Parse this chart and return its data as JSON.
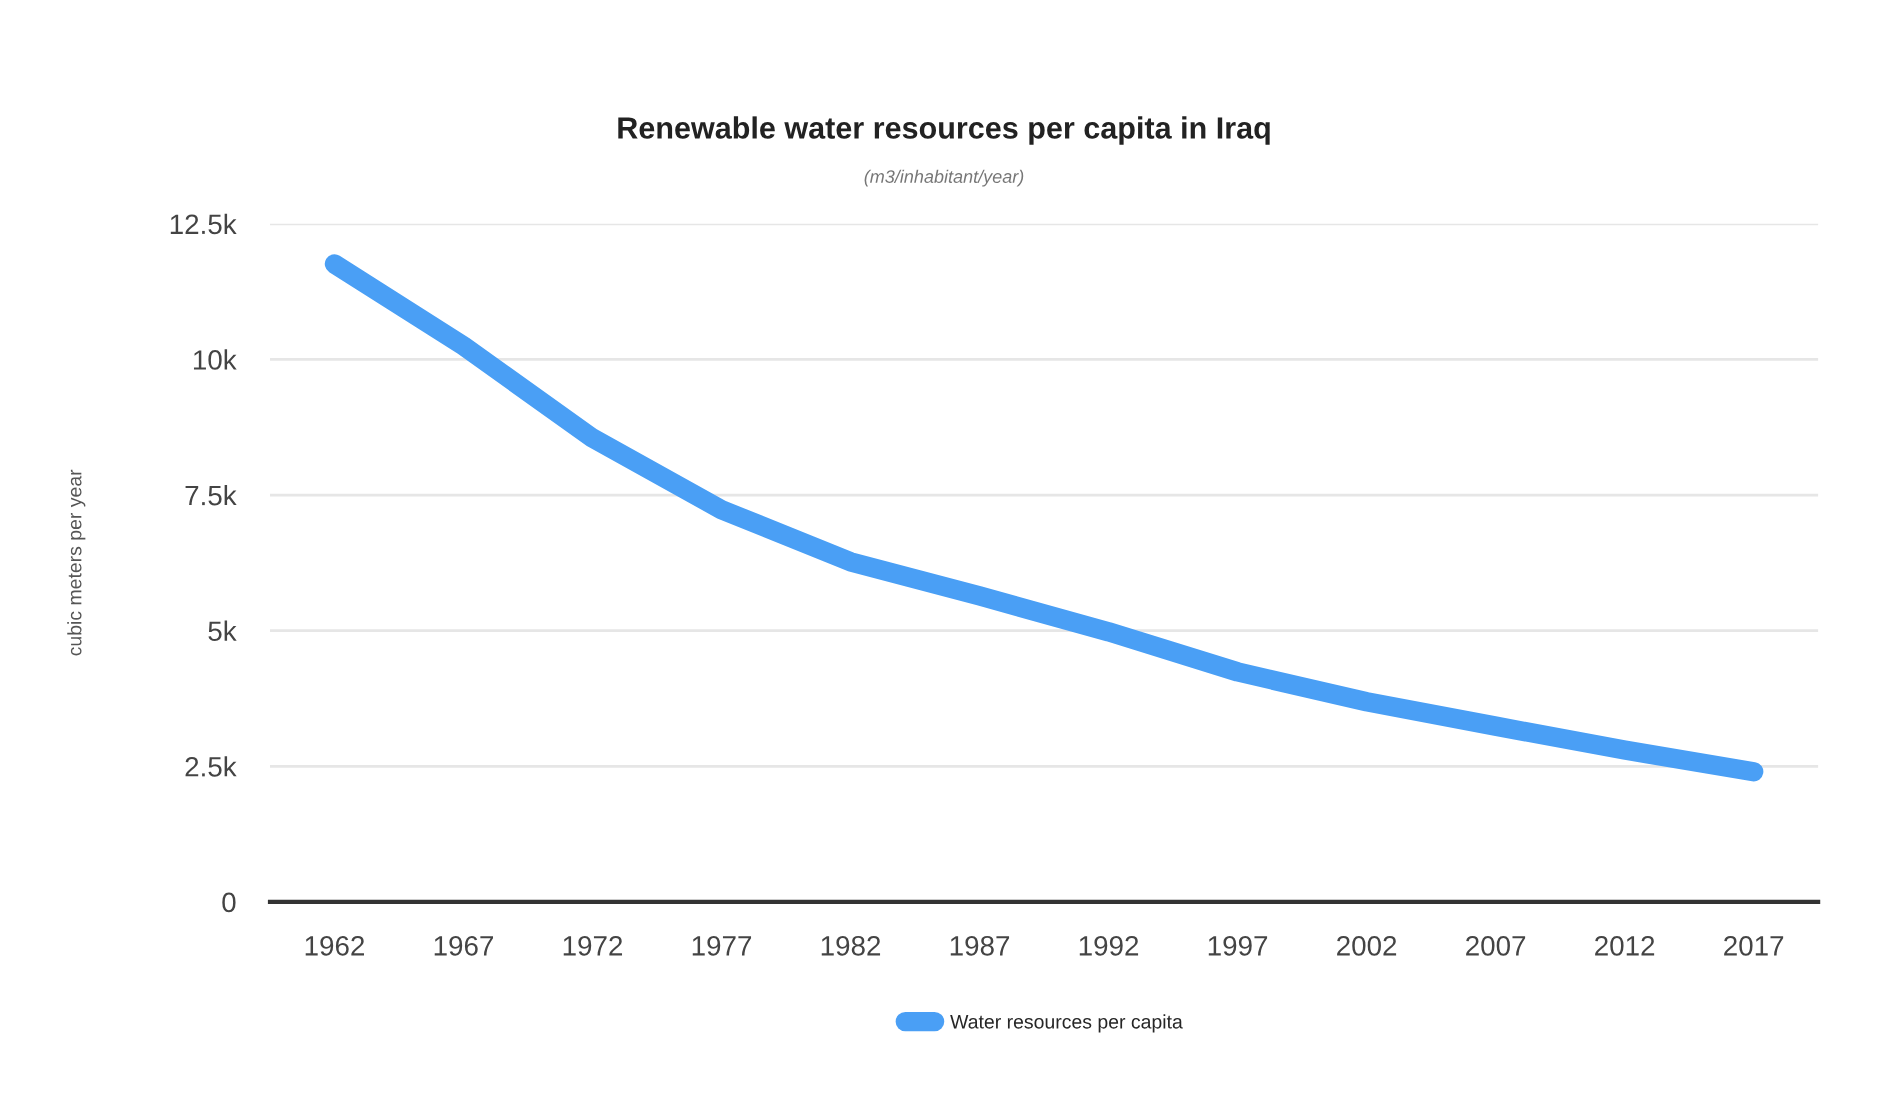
{
  "chart_data": {
    "type": "line",
    "title": "Renewable water resources per capita in Iraq",
    "subtitle": "(m3/inhabitant/year)",
    "ylabel": "cubic meters per year",
    "x": [
      1962,
      1967,
      1972,
      1977,
      1982,
      1987,
      1992,
      1997,
      2002,
      2007,
      2012,
      2017
    ],
    "series": [
      {
        "name": "Water resources per capita",
        "color": "#4a9ff5",
        "values": [
          11760,
          10250,
          8550,
          7230,
          6270,
          5640,
          4980,
          4240,
          3690,
          3240,
          2800,
          2400
        ]
      }
    ],
    "xlim": [
      1959.5,
      2019.5
    ],
    "xticks": [
      1962,
      1967,
      1972,
      1977,
      1982,
      1987,
      1992,
      1997,
      2002,
      2007,
      2012,
      2017
    ],
    "ylim": [
      0,
      12500
    ],
    "yticks": [
      {
        "value": 0,
        "label": "0"
      },
      {
        "value": 2500,
        "label": "2.5k"
      },
      {
        "value": 5000,
        "label": "5k"
      },
      {
        "value": 7500,
        "label": "7.5k"
      },
      {
        "value": 10000,
        "label": "10k"
      },
      {
        "value": 12500,
        "label": "12.5k"
      }
    ],
    "grid": "y",
    "legend": "bottom",
    "marker": "none",
    "line_style": "solid"
  }
}
